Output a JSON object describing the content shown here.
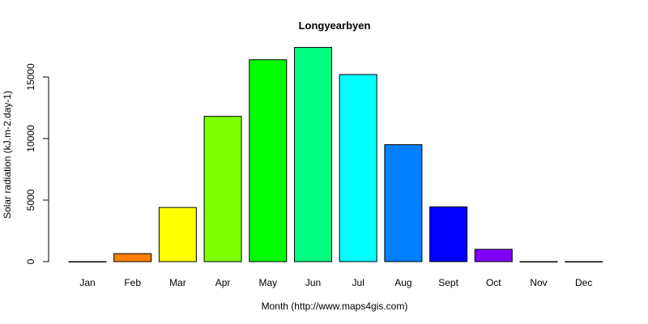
{
  "chart_data": {
    "type": "bar",
    "title": "Longyearbyen",
    "xlabel": "Month (http://www.maps4gis.com)",
    "ylabel": "Solar radiation (kJ.m-2.day-1)",
    "categories": [
      "Jan",
      "Feb",
      "Mar",
      "Apr",
      "May",
      "Jun",
      "Jul",
      "Aug",
      "Sept",
      "Oct",
      "Nov",
      "Dec"
    ],
    "values": [
      0,
      650,
      4400,
      11800,
      16400,
      17400,
      15200,
      9500,
      4450,
      1000,
      0,
      0
    ],
    "colors": [
      "#FF0000",
      "#FF8000",
      "#FFFF00",
      "#80FF00",
      "#00FF00",
      "#00FF80",
      "#00FFFF",
      "#0080FF",
      "#0000FF",
      "#8000FF",
      "#FF00FF",
      "#FF0080"
    ],
    "yticks": [
      0,
      5000,
      10000,
      15000
    ],
    "ylim": [
      0,
      17400
    ],
    "grid": false,
    "legend": "none"
  }
}
